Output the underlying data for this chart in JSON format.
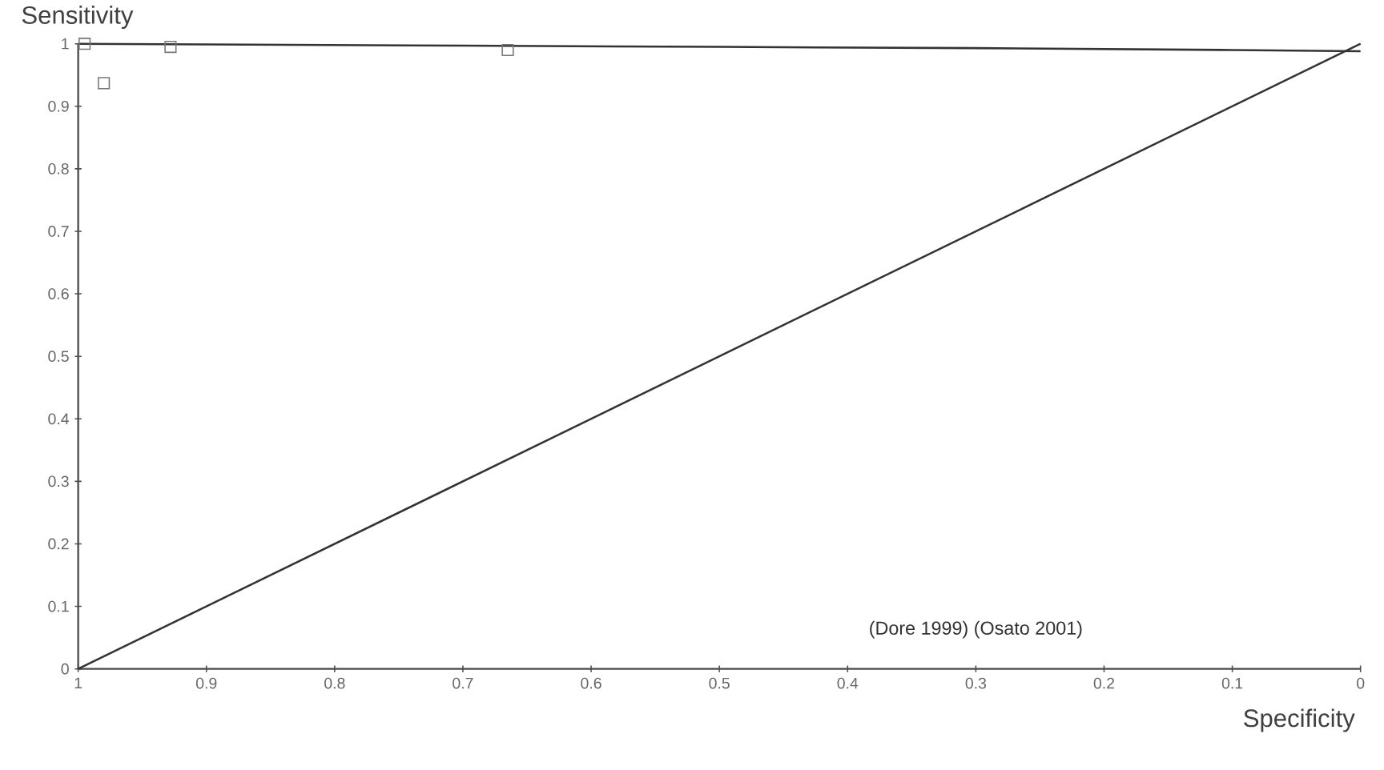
{
  "chart_data": {
    "type": "scatter",
    "xlabel": "Specificity",
    "ylabel": "Sensitivity",
    "xlim": [
      1,
      0
    ],
    "ylim": [
      0,
      1
    ],
    "xticks": [
      1,
      0.9,
      0.8,
      0.7,
      0.6,
      0.5,
      0.4,
      0.3,
      0.2,
      0.1,
      0
    ],
    "yticks": [
      0,
      0.1,
      0.2,
      0.3,
      0.4,
      0.5,
      0.6,
      0.7,
      0.8,
      0.9,
      1
    ],
    "annotations": [
      "(Dore 1999) (Osato 2001)"
    ],
    "series": [
      {
        "type": "line",
        "color": "#333333",
        "line_style": "solid",
        "marker": "none",
        "x": [
          1,
          0.9,
          0.7,
          0.5,
          0.3,
          0.1,
          0
        ],
        "values": [
          1,
          0.999,
          0.997,
          0.995,
          0.993,
          0.99,
          0.988
        ]
      },
      {
        "type": "line",
        "color": "#333333",
        "line_style": "solid",
        "marker": "none",
        "x": [
          1,
          0
        ],
        "values": [
          0,
          1
        ]
      },
      {
        "color": "#777777",
        "marker": "square",
        "x": [
          0.995,
          0.98,
          0.928,
          0.665
        ],
        "values": [
          1,
          0.937,
          0.995,
          0.99
        ]
      }
    ]
  }
}
